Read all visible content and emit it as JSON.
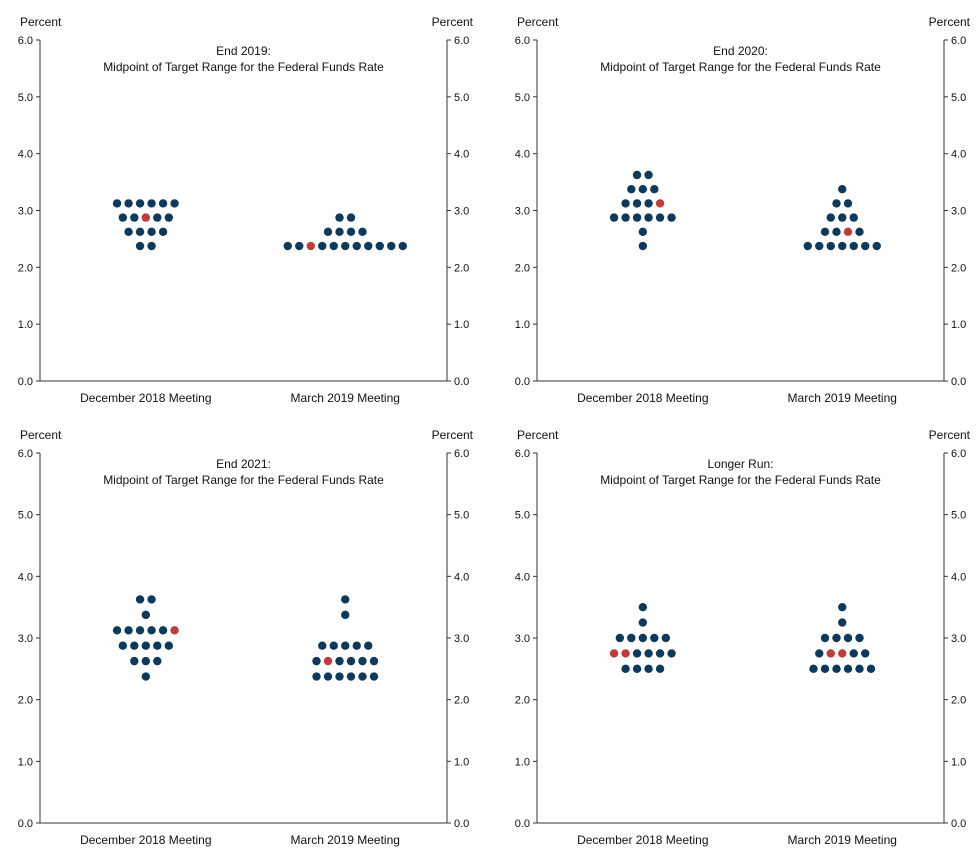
{
  "colors": {
    "dot": "#0d3a5c",
    "highlight": "#c23b3b",
    "axis": "#333333"
  },
  "chart_data": [
    {
      "type": "scatter",
      "title": "End 2019:",
      "subtitle": "Midpoint of Target Range for the Federal Funds Rate",
      "ylabel_left": "Percent",
      "ylabel_right": "Percent",
      "ylim": [
        0,
        6
      ],
      "yticks": [
        "0.0",
        "1.0",
        "2.0",
        "3.0",
        "4.0",
        "5.0",
        "6.0"
      ],
      "categories": [
        "December 2018 Meeting",
        "March 2019 Meeting"
      ],
      "series": [
        {
          "category": "December 2018 Meeting",
          "levels": [
            {
              "y": 3.125,
              "count": 6
            },
            {
              "y": 2.875,
              "count": 5,
              "highlight": 2
            },
            {
              "y": 2.625,
              "count": 4
            },
            {
              "y": 2.375,
              "count": 2
            }
          ]
        },
        {
          "category": "March 2019 Meeting",
          "levels": [
            {
              "y": 2.875,
              "count": 2
            },
            {
              "y": 2.625,
              "count": 4
            },
            {
              "y": 2.375,
              "count": 11,
              "highlight": 2
            }
          ]
        }
      ]
    },
    {
      "type": "scatter",
      "title": "End 2020:",
      "subtitle": "Midpoint of Target Range for the Federal Funds Rate",
      "ylabel_left": "Percent",
      "ylabel_right": "Percent",
      "ylim": [
        0,
        6
      ],
      "yticks": [
        "0.0",
        "1.0",
        "2.0",
        "3.0",
        "4.0",
        "5.0",
        "6.0"
      ],
      "categories": [
        "December 2018 Meeting",
        "March 2019 Meeting"
      ],
      "series": [
        {
          "category": "December 2018 Meeting",
          "levels": [
            {
              "y": 3.625,
              "count": 2
            },
            {
              "y": 3.375,
              "count": 3
            },
            {
              "y": 3.125,
              "count": 4,
              "highlight": 3
            },
            {
              "y": 2.875,
              "count": 6
            },
            {
              "y": 2.625,
              "count": 1
            },
            {
              "y": 2.375,
              "count": 1
            }
          ]
        },
        {
          "category": "March 2019 Meeting",
          "levels": [
            {
              "y": 3.375,
              "count": 1
            },
            {
              "y": 3.125,
              "count": 2
            },
            {
              "y": 2.875,
              "count": 3
            },
            {
              "y": 2.625,
              "count": 4,
              "highlight": 2
            },
            {
              "y": 2.375,
              "count": 7
            }
          ]
        }
      ]
    },
    {
      "type": "scatter",
      "title": "End 2021:",
      "subtitle": "Midpoint of Target Range for the Federal Funds Rate",
      "ylabel_left": "Percent",
      "ylabel_right": "Percent",
      "ylim": [
        0,
        6
      ],
      "yticks": [
        "0.0",
        "1.0",
        "2.0",
        "3.0",
        "4.0",
        "5.0",
        "6.0"
      ],
      "categories": [
        "December 2018 Meeting",
        "March 2019 Meeting"
      ],
      "series": [
        {
          "category": "December 2018 Meeting",
          "levels": [
            {
              "y": 3.625,
              "count": 2
            },
            {
              "y": 3.375,
              "count": 1
            },
            {
              "y": 3.125,
              "count": 6,
              "highlight": 5
            },
            {
              "y": 2.875,
              "count": 5
            },
            {
              "y": 2.625,
              "count": 3
            },
            {
              "y": 2.375,
              "count": 1
            }
          ]
        },
        {
          "category": "March 2019 Meeting",
          "levels": [
            {
              "y": 3.625,
              "count": 1
            },
            {
              "y": 3.375,
              "count": 1
            },
            {
              "y": 2.875,
              "count": 5
            },
            {
              "y": 2.625,
              "count": 6,
              "highlight": 1
            },
            {
              "y": 2.375,
              "count": 6
            }
          ]
        }
      ]
    },
    {
      "type": "scatter",
      "title": "Longer Run:",
      "subtitle": "Midpoint of Target Range for the Federal Funds Rate",
      "ylabel_left": "Percent",
      "ylabel_right": "Percent",
      "ylim": [
        0,
        6
      ],
      "yticks": [
        "0.0",
        "1.0",
        "2.0",
        "3.0",
        "4.0",
        "5.0",
        "6.0"
      ],
      "categories": [
        "December 2018 Meeting",
        "March 2019 Meeting"
      ],
      "series": [
        {
          "category": "December 2018 Meeting",
          "levels": [
            {
              "y": 3.5,
              "count": 1
            },
            {
              "y": 3.25,
              "count": 1
            },
            {
              "y": 3.0,
              "count": 5
            },
            {
              "y": 2.75,
              "count": 6,
              "highlight": [
                0,
                1
              ]
            },
            {
              "y": 2.5,
              "count": 4
            }
          ]
        },
        {
          "category": "March 2019 Meeting",
          "levels": [
            {
              "y": 3.5,
              "count": 1
            },
            {
              "y": 3.25,
              "count": 1
            },
            {
              "y": 3.0,
              "count": 4
            },
            {
              "y": 2.75,
              "count": 5,
              "highlight": [
                1,
                2
              ]
            },
            {
              "y": 2.5,
              "count": 6
            }
          ]
        }
      ]
    }
  ]
}
